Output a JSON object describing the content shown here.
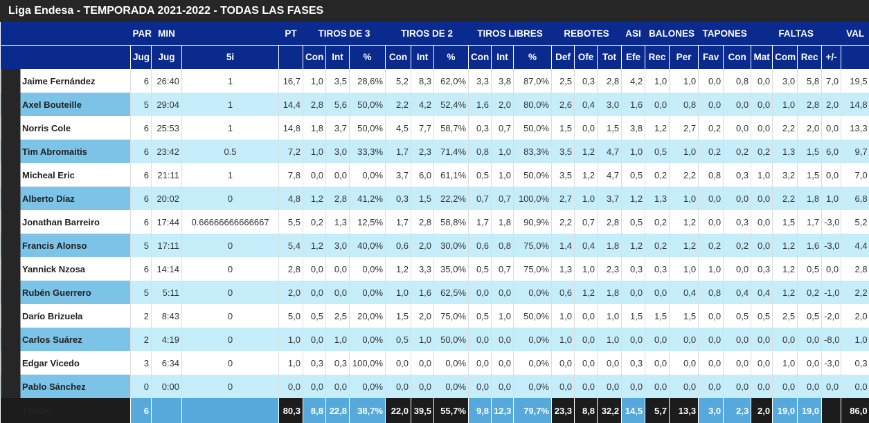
{
  "title": "Liga Endesa - TEMPORADA 2021-2022 - TODAS LAS FASES",
  "group_headers": [
    null,
    "PAR",
    "MIN",
    null,
    "PT",
    "TIROS DE 3",
    "TIROS DE 2",
    "TIROS LIBRES",
    "REBOTES",
    "ASI",
    "BALONES",
    "TAPONES",
    "FALTAS",
    "VAL"
  ],
  "sub_headers": [
    null,
    "Jug",
    "Jug",
    "5i",
    null,
    "Con",
    "Int",
    "%",
    "Con",
    "Int",
    "%",
    "Con",
    "Int",
    "%",
    "Def",
    "Ofe",
    "Tot",
    "Efe",
    "Rec",
    "Per",
    "Fav",
    "Con",
    "Mat",
    "Com",
    "Rec",
    "+/-",
    null
  ],
  "rows": [
    [
      "Jaime Fernández",
      "6",
      "26:40",
      "1",
      "16,7",
      "1,0",
      "3,5",
      "28,6%",
      "5,2",
      "8,3",
      "62,0%",
      "3,3",
      "3,8",
      "87,0%",
      "2,5",
      "0,3",
      "2,8",
      "4,2",
      "1,0",
      "1,0",
      "0,0",
      "0,8",
      "0,0",
      "3,0",
      "5,8",
      "7,0",
      "19,5"
    ],
    [
      "Axel Bouteille",
      "5",
      "29:04",
      "1",
      "14,4",
      "2,8",
      "5,6",
      "50,0%",
      "2,2",
      "4,2",
      "52,4%",
      "1,6",
      "2,0",
      "80,0%",
      "2,6",
      "0,4",
      "3,0",
      "1,6",
      "0,0",
      "0,8",
      "0,0",
      "0,0",
      "0,0",
      "1,0",
      "2,8",
      "2,0",
      "14,8"
    ],
    [
      "Norris Cole",
      "6",
      "25:53",
      "1",
      "14,8",
      "1,8",
      "3,7",
      "50,0%",
      "4,5",
      "7,7",
      "58,7%",
      "0,3",
      "0,7",
      "50,0%",
      "1,5",
      "0,0",
      "1,5",
      "3,8",
      "1,2",
      "2,7",
      "0,2",
      "0,0",
      "0,0",
      "2,2",
      "2,0",
      "0,0",
      "13,3"
    ],
    [
      "Tim Abromaitis",
      "6",
      "23:42",
      "0.5",
      "7,2",
      "1,0",
      "3,0",
      "33,3%",
      "1,7",
      "2,3",
      "71,4%",
      "0,8",
      "1,0",
      "83,3%",
      "3,5",
      "1,2",
      "4,7",
      "1,0",
      "0,5",
      "1,0",
      "0,2",
      "0,2",
      "0,2",
      "1,3",
      "1,5",
      "6,0",
      "9,7"
    ],
    [
      "Micheal Eric",
      "6",
      "21:11",
      "1",
      "7,8",
      "0,0",
      "0,0",
      "0,0%",
      "3,7",
      "6,0",
      "61,1%",
      "0,5",
      "1,0",
      "50,0%",
      "3,5",
      "1,2",
      "4,7",
      "0,5",
      "0,2",
      "2,2",
      "0,8",
      "0,3",
      "1,0",
      "3,2",
      "1,5",
      "0,0",
      "7,0"
    ],
    [
      "Alberto Díaz",
      "6",
      "20:02",
      "0",
      "4,8",
      "1,2",
      "2,8",
      "41,2%",
      "0,3",
      "1,5",
      "22,2%",
      "0,7",
      "0,7",
      "100,0%",
      "2,7",
      "1,0",
      "3,7",
      "1,2",
      "1,3",
      "1,0",
      "0,0",
      "0,0",
      "0,0",
      "2,2",
      "1,8",
      "1,0",
      "6,8"
    ],
    [
      "Jonathan Barreiro",
      "6",
      "17:44",
      "0.66666666666667",
      "5,5",
      "0,2",
      "1,3",
      "12,5%",
      "1,7",
      "2,8",
      "58,8%",
      "1,7",
      "1,8",
      "90,9%",
      "2,2",
      "0,7",
      "2,8",
      "0,5",
      "0,2",
      "1,2",
      "0,0",
      "0,3",
      "0,0",
      "1,5",
      "1,7",
      "-3,0",
      "5,2"
    ],
    [
      "Francis Alonso",
      "5",
      "17:11",
      "0",
      "5,4",
      "1,2",
      "3,0",
      "40,0%",
      "0,6",
      "2,0",
      "30,0%",
      "0,6",
      "0,8",
      "75,0%",
      "1,4",
      "0,4",
      "1,8",
      "1,2",
      "0,2",
      "1,2",
      "0,2",
      "0,2",
      "0,0",
      "1,2",
      "1,6",
      "-3,0",
      "4,4"
    ],
    [
      "Yannick Nzosa",
      "6",
      "14:14",
      "0",
      "2,8",
      "0,0",
      "0,0",
      "0,0%",
      "1,2",
      "3,3",
      "35,0%",
      "0,5",
      "0,7",
      "75,0%",
      "1,3",
      "1,0",
      "2,3",
      "0,3",
      "0,3",
      "1,0",
      "1,0",
      "0,0",
      "0,3",
      "1,2",
      "0,5",
      "0,0",
      "2,8"
    ],
    [
      "Rubén Guerrero",
      "5",
      "5:11",
      "0",
      "2,0",
      "0,0",
      "0,0",
      "0,0%",
      "1,0",
      "1,6",
      "62,5%",
      "0,0",
      "0,0",
      "0,0%",
      "0,6",
      "1,2",
      "1,8",
      "0,0",
      "0,0",
      "0,4",
      "0,8",
      "0,4",
      "0,4",
      "1,2",
      "0,2",
      "-1,0",
      "2,2"
    ],
    [
      "Darío Brizuela",
      "2",
      "8:43",
      "0",
      "5,0",
      "0,5",
      "2,5",
      "20,0%",
      "1,5",
      "2,0",
      "75,0%",
      "0,5",
      "1,0",
      "50,0%",
      "1,0",
      "0,0",
      "1,0",
      "1,5",
      "1,5",
      "1,5",
      "0,0",
      "0,5",
      "0,5",
      "2,5",
      "0,5",
      "-2,0",
      "2,0"
    ],
    [
      "Carlos Suárez",
      "2",
      "4:19",
      "0",
      "1,0",
      "0,0",
      "1,0",
      "0,0%",
      "0,5",
      "1,0",
      "50,0%",
      "0,0",
      "0,0",
      "0,0%",
      "1,0",
      "0,0",
      "1,0",
      "0,0",
      "0,0",
      "0,0",
      "0,0",
      "0,0",
      "0,0",
      "0,0",
      "0,0",
      "-8,0",
      "1,0"
    ],
    [
      "Edgar Vicedo",
      "3",
      "6:34",
      "0",
      "1,0",
      "0,3",
      "0,3",
      "100,0%",
      "0,0",
      "0,0",
      "0,0%",
      "0,0",
      "0,0",
      "0,0%",
      "0,0",
      "0,0",
      "0,0",
      "0,3",
      "0,0",
      "0,0",
      "0,0",
      "0,0",
      "0,0",
      "1,0",
      "0,0",
      "-3,0",
      "0,3"
    ],
    [
      "Pablo Sánchez",
      "0",
      "0:00",
      "0",
      "0,0",
      "0,0",
      "0,0",
      "0,0%",
      "0,0",
      "0,0",
      "0,0%",
      "0,0",
      "0,0",
      "0,0%",
      "0,0",
      "0,0",
      "0,0",
      "0,0",
      "0,0",
      "0,0",
      "0,0",
      "0,0",
      "0,0",
      "0,0",
      "0,0",
      "0,0",
      "0,0"
    ]
  ],
  "totals": [
    "Totales",
    "6",
    null,
    null,
    "80,3",
    "8,8",
    "22,8",
    "38,7%",
    "22,0",
    "39,5",
    "55,7%",
    "9,8",
    "12,3",
    "79,7%",
    "23,3",
    "8,8",
    "32,2",
    "14,5",
    "5,7",
    "13,3",
    "3,0",
    "2,3",
    "2,0",
    "19,0",
    "19,0",
    null,
    "86,0"
  ]
}
